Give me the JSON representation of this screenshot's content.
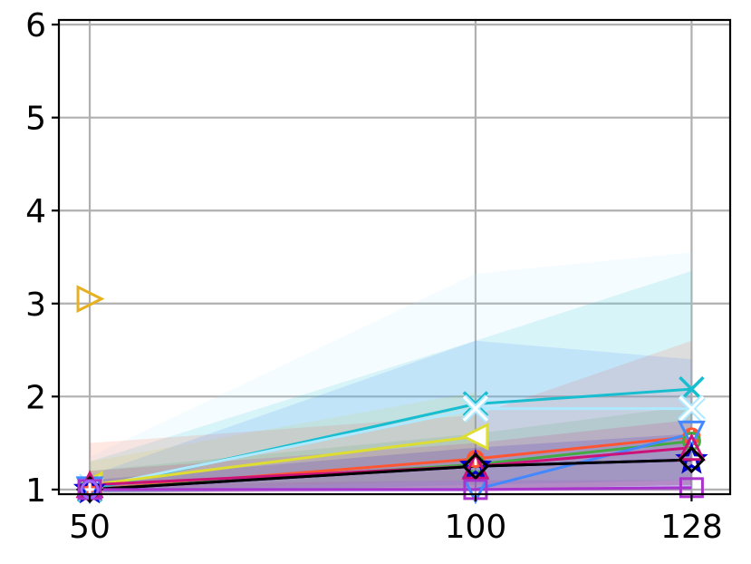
{
  "chart_data": {
    "type": "line",
    "title": "",
    "xlabel": "",
    "ylabel": "",
    "x": [
      50,
      100,
      128
    ],
    "xlim": [
      46,
      133
    ],
    "ylim": [
      0.95,
      6.05
    ],
    "x_ticks": [
      "50",
      "100",
      "128"
    ],
    "y_ticks": [
      "1",
      "2",
      "3",
      "4",
      "5",
      "6"
    ],
    "grid": true,
    "legend": "none",
    "series": [
      {
        "color": "#17becf",
        "marker": "x",
        "values": [
          1.0,
          1.92,
          2.08
        ],
        "band": [
          [
            0.95,
            1.3
          ],
          [
            1.05,
            2.6
          ],
          [
            1.1,
            3.35
          ]
        ]
      },
      {
        "color": "#aee9ff",
        "marker": "X",
        "values": [
          1.02,
          1.87,
          1.87
        ],
        "band": [
          [
            0.95,
            1.35
          ],
          [
            1.05,
            3.32
          ],
          [
            1.1,
            3.55
          ]
        ]
      },
      {
        "color": "#dddd33",
        "marker": "<",
        "values": [
          1.05,
          1.57,
          null
        ],
        "band": [
          [
            0.98,
            1.3
          ],
          [
            1.1,
            2.05
          ],
          null
        ]
      },
      {
        "color": "#e8b020",
        "marker": ">",
        "values": [
          3.05,
          null,
          null
        ],
        "band": null
      },
      {
        "color": "#ff5533",
        "marker": "P",
        "values": [
          1.0,
          1.33,
          1.57
        ],
        "band": [
          [
            0.95,
            1.5
          ],
          [
            1.0,
            1.8
          ],
          [
            1.05,
            2.6
          ]
        ]
      },
      {
        "color": "#44aa44",
        "marker": "o",
        "values": [
          1.0,
          1.27,
          1.52
        ],
        "band": [
          [
            0.97,
            1.2
          ],
          [
            1.0,
            1.6
          ],
          [
            1.05,
            1.9
          ]
        ]
      },
      {
        "color": "#4488ff",
        "marker": "v",
        "values": [
          1.0,
          1.0,
          1.6
        ],
        "band": [
          [
            0.97,
            1.15
          ],
          [
            0.98,
            2.6
          ],
          [
            1.0,
            2.4
          ]
        ]
      },
      {
        "color": "#0000cc",
        "marker": "*",
        "values": [
          1.0,
          1.25,
          1.32
        ],
        "band": [
          [
            0.97,
            1.1
          ],
          [
            1.0,
            1.45
          ],
          [
            1.0,
            1.6
          ]
        ]
      },
      {
        "color": "#cc1177",
        "marker": "^",
        "values": [
          1.05,
          1.25,
          1.45
        ],
        "band": [
          [
            0.98,
            1.2
          ],
          [
            1.0,
            1.5
          ],
          [
            1.05,
            1.75
          ]
        ]
      },
      {
        "color": "#000000",
        "marker": "D",
        "values": [
          1.0,
          1.25,
          1.32
        ],
        "band": null
      },
      {
        "color": "#aa33cc",
        "marker": "s",
        "values": [
          1.0,
          1.0,
          1.02
        ],
        "band": [
          [
            0.97,
            1.05
          ],
          [
            0.98,
            1.1
          ],
          [
            0.98,
            1.1
          ]
        ]
      },
      {
        "color": "#9966ff",
        "marker": "o",
        "values": [
          1.0,
          null,
          null
        ],
        "band": null
      }
    ]
  }
}
